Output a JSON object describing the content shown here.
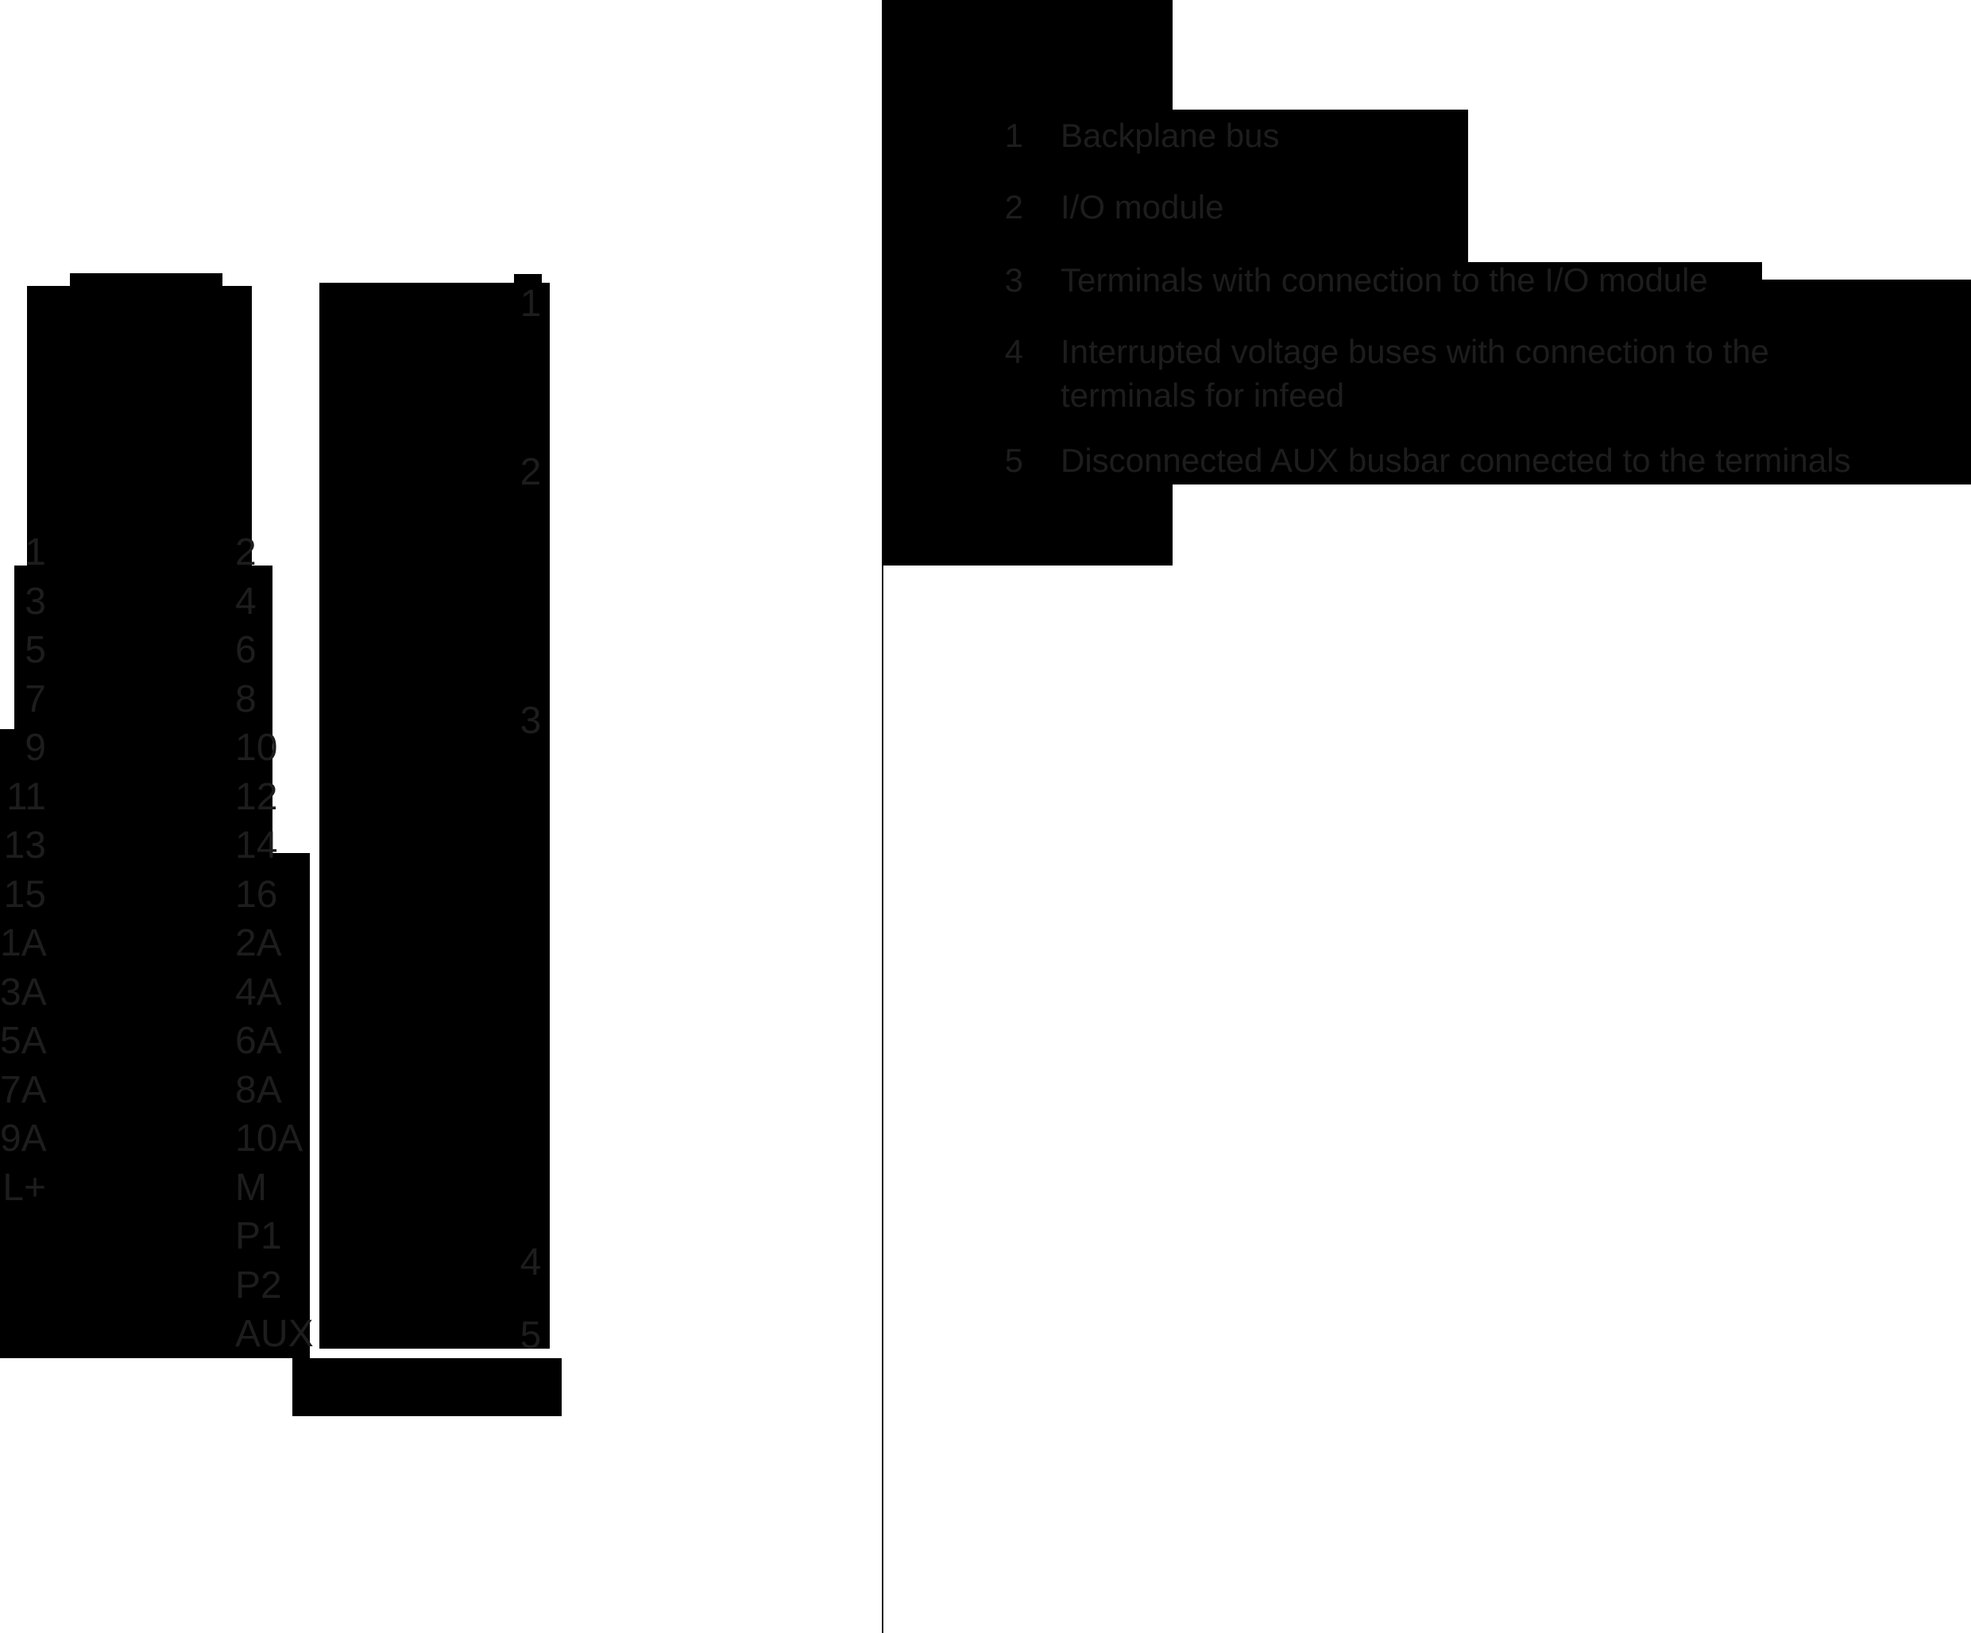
{
  "diagram": {
    "left_terminals": [
      "1",
      "3",
      "5",
      "7",
      "9",
      "11",
      "13",
      "15",
      "1A",
      "3A",
      "5A",
      "7A",
      "9A",
      "L+"
    ],
    "right_terminals": [
      "2",
      "4",
      "6",
      "8",
      "10",
      "12",
      "14",
      "16",
      "2A",
      "4A",
      "6A",
      "8A",
      "10A",
      "M",
      "P1",
      "P2",
      "AUX"
    ],
    "module_callouts": [
      "1",
      "2",
      "3"
    ],
    "bus_callout": "4",
    "aux_callout": "5"
  },
  "legend": {
    "items": [
      {
        "num": "1",
        "label": "Backplane bus"
      },
      {
        "num": "2",
        "label": "I/O module"
      },
      {
        "num": "3",
        "label": "Terminals with connection to the I/O module"
      },
      {
        "num": "4",
        "label": "Interrupted voltage buses with connection to the",
        "label2": "terminals for infeed"
      },
      {
        "num": "5",
        "label": "Disconnected AUX busbar connected to the terminals"
      }
    ]
  },
  "colors": {
    "shape": "#000000",
    "text": "#1d1d1d",
    "divider": "#1c1c1c",
    "background": "#ffffff"
  }
}
